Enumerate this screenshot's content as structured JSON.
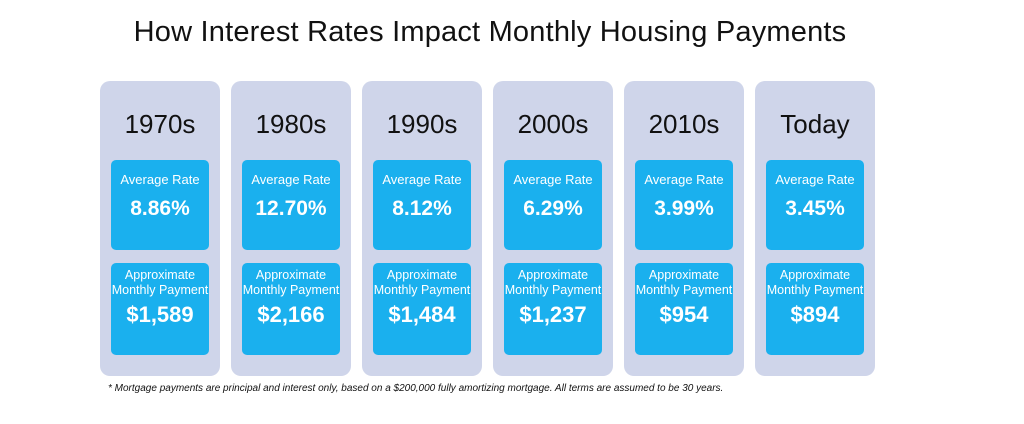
{
  "title": "How Interest Rates Impact Monthly Housing Payments",
  "cards": [
    {
      "decade": "1970s",
      "rate_label": "Average Rate",
      "rate": "8.86%",
      "payment_label": "Approximate Monthly Payment",
      "payment": "$1,589"
    },
    {
      "decade": "1980s",
      "rate_label": "Average Rate",
      "rate": "12.70%",
      "payment_label": "Approximate Monthly Payment",
      "payment": "$2,166"
    },
    {
      "decade": "1990s",
      "rate_label": "Average Rate",
      "rate": "8.12%",
      "payment_label": "Approximate Monthly Payment",
      "payment": "$1,484"
    },
    {
      "decade": "2000s",
      "rate_label": "Average Rate",
      "rate": "6.29%",
      "payment_label": "Approximate Monthly Payment",
      "payment": "$1,237"
    },
    {
      "decade": "2010s",
      "rate_label": "Average Rate",
      "rate": "3.99%",
      "payment_label": "Approximate Monthly Payment",
      "payment": "$954"
    },
    {
      "decade": "Today",
      "rate_label": "Average Rate",
      "rate": "3.45%",
      "payment_label": "Approximate Monthly Payment",
      "payment": "$894"
    }
  ],
  "footnote": "* Mortgage payments are principal and interest only, based on a $200,000 fully amortizing mortgage. All terms are assumed to be 30 years.",
  "colors": {
    "card_bg": "#cfd5ea",
    "box_bg": "#1ab0ee",
    "box_text": "#ffffff"
  }
}
